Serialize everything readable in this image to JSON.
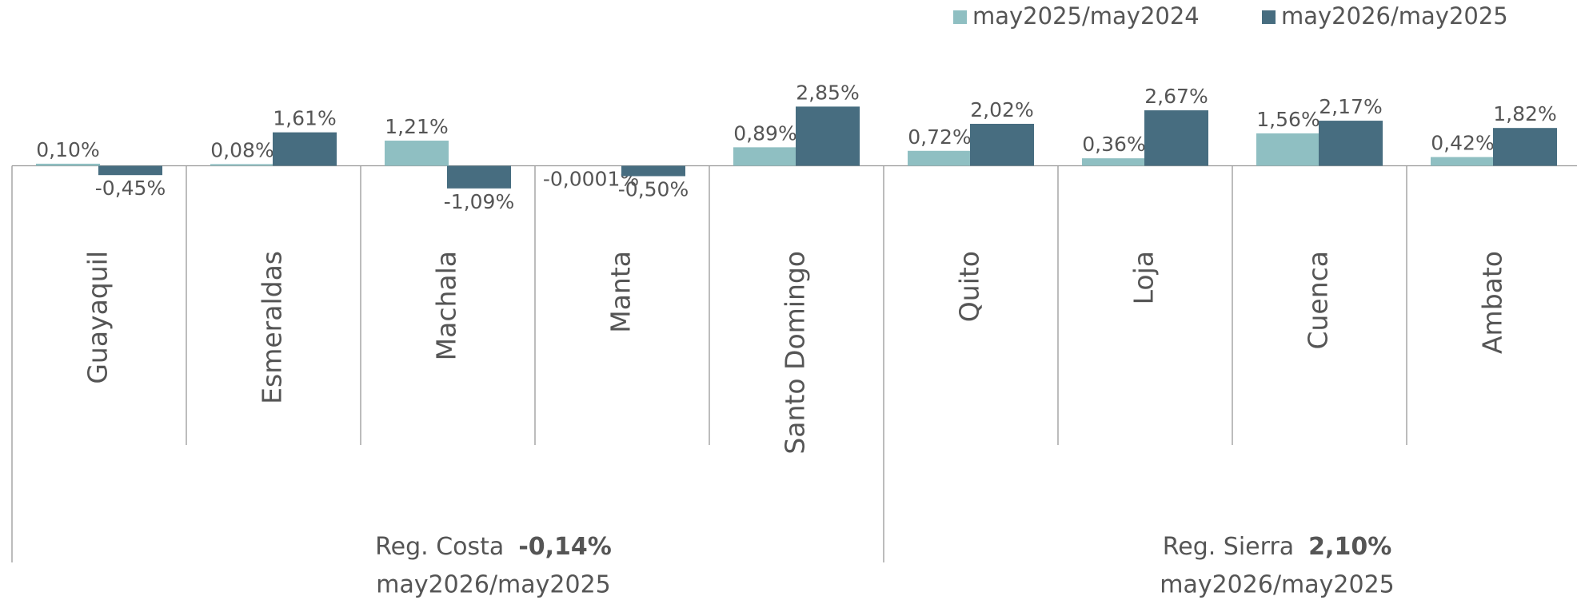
{
  "chart_data": {
    "type": "bar",
    "categories": [
      "Guayaquil",
      "Esmeraldas",
      "Machala",
      "Manta",
      "Santo Domingo",
      "Quito",
      "Loja",
      "Cuenca",
      "Ambato"
    ],
    "series": [
      {
        "name": "may2025/may2024",
        "color": "#8fbfc2",
        "values": [
          0.1,
          0.08,
          1.21,
          -0.0001,
          0.89,
          0.72,
          0.36,
          1.56,
          0.42
        ],
        "value_labels": [
          "0,10%",
          "0,08%",
          "1,21%",
          "-0,0001%",
          "0,89%",
          "0,72%",
          "0,36%",
          "1,56%",
          "0,42%"
        ]
      },
      {
        "name": "may2026/may2025",
        "color": "#476d80",
        "values": [
          -0.45,
          1.61,
          -1.09,
          -0.5,
          2.85,
          2.02,
          2.67,
          2.17,
          1.82
        ],
        "value_labels": [
          "-0,45%",
          "1,61%",
          "-1,09%",
          "-0,50%",
          "2,85%",
          "2,02%",
          "2,67%",
          "2,17%",
          "1,82%"
        ]
      }
    ],
    "legend": "top-right",
    "groups": [
      {
        "name": "Reg. Costa",
        "value": -0.14,
        "value_label": "-0,14%",
        "period": "may2026/may2025"
      },
      {
        "name": "Reg. Sierra",
        "value": 2.1,
        "value_label": "2,10%",
        "period": "may2026/may2025"
      }
    ]
  }
}
